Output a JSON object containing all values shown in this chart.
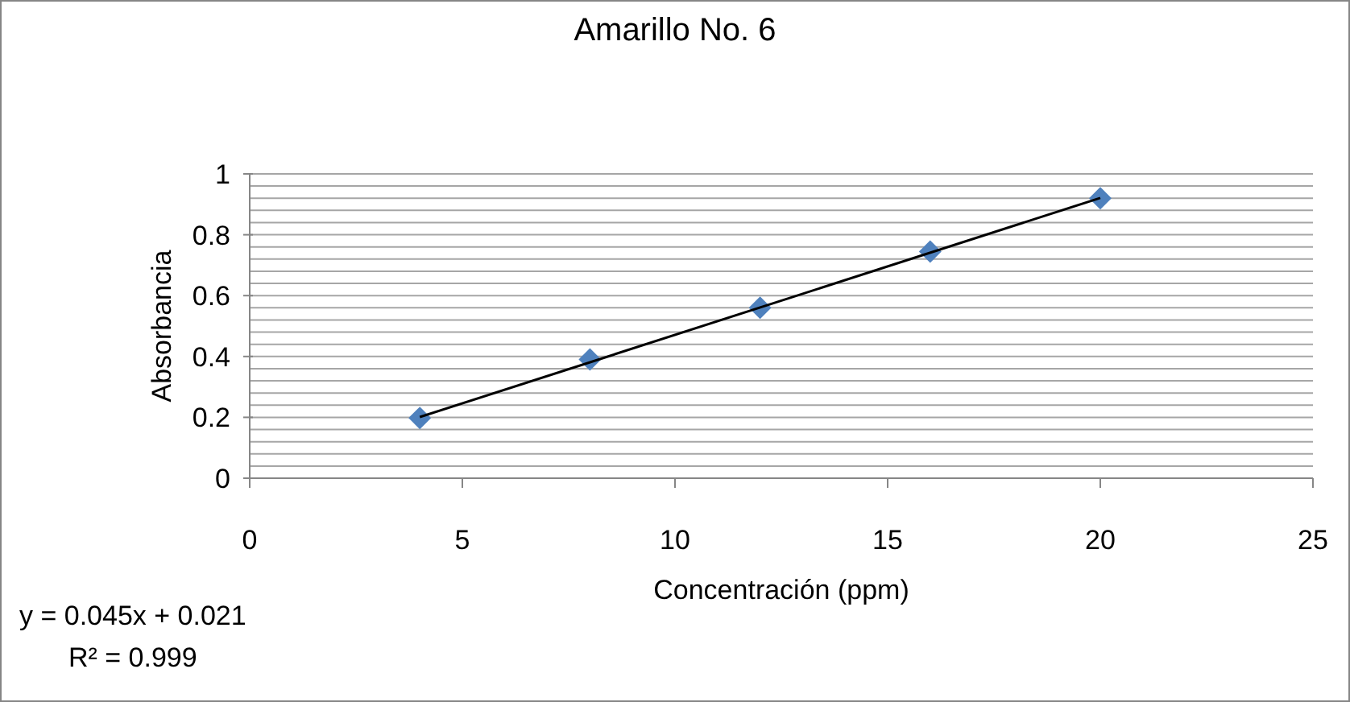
{
  "chart_data": {
    "type": "scatter",
    "title": "Amarillo No. 6",
    "xlabel": "Concentración (ppm)",
    "ylabel": "Absorbancia",
    "series": [
      {
        "color": "#4f81bd",
        "marker": "diamond",
        "x": [
          4,
          8,
          12,
          16,
          20
        ],
        "values": [
          0.198,
          0.39,
          0.56,
          0.745,
          0.92
        ]
      },
      {
        "type": "line",
        "color": "#000000",
        "marker": "none",
        "x": [
          4,
          20
        ],
        "values": [
          0.201,
          0.921
        ]
      }
    ],
    "xlim": [
      0,
      25
    ],
    "xticks": [
      0,
      5,
      10,
      15,
      20,
      25
    ],
    "ylim": [
      0,
      1
    ],
    "yticks": [
      0,
      {
        "value": 0.04,
        "label": null
      },
      {
        "value": 0.08,
        "label": null
      },
      {
        "value": 0.12,
        "label": null
      },
      {
        "value": 0.16,
        "label": null
      },
      0.2,
      {
        "value": 0.24,
        "label": null
      },
      {
        "value": 0.28,
        "label": null
      },
      {
        "value": 0.32,
        "label": null
      },
      {
        "value": 0.36,
        "label": null
      },
      0.4,
      {
        "value": 0.44,
        "label": null
      },
      {
        "value": 0.48,
        "label": null
      },
      {
        "value": 0.52,
        "label": null
      },
      {
        "value": 0.56,
        "label": null
      },
      0.6,
      {
        "value": 0.64,
        "label": null
      },
      {
        "value": 0.68,
        "label": null
      },
      {
        "value": 0.72,
        "label": null
      },
      {
        "value": 0.76,
        "label": null
      },
      0.8,
      {
        "value": 0.84,
        "label": null
      },
      {
        "value": 0.88,
        "label": null
      },
      {
        "value": 0.92,
        "label": null
      },
      {
        "value": 0.96,
        "label": null
      },
      1
    ],
    "grid": "y",
    "annotations": [
      "y = 0.045x + 0.021",
      "R² = 0.999"
    ]
  }
}
